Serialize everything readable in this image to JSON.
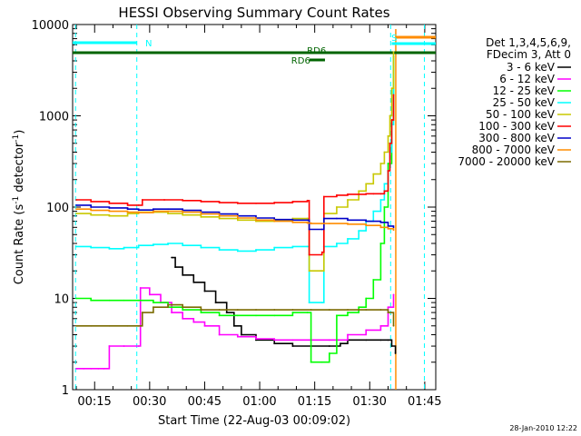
{
  "chart_data": {
    "type": "line",
    "title": "HESSI Observing Summary Count Rates",
    "xlabel": "Start Time (22-Aug-03 00:09:02)",
    "ylabel": "Count Rate (s",
    "ylabel_sup1": "-1",
    "ylabel_mid": " detector",
    "ylabel_sup2": "-1",
    "ylabel_end": ")",
    "yscale": "log",
    "ylim": [
      1,
      10000
    ],
    "xlim": [
      "00:09:02",
      "01:48:00"
    ],
    "xtick_labels": [
      "00:15",
      "00:30",
      "00:45",
      "01:00",
      "01:15",
      "01:30",
      "01:45"
    ],
    "ytick_labels": [
      "1",
      "10",
      "100",
      "1000",
      "10000"
    ],
    "legend": {
      "placement": "top-right",
      "header": [
        "Det 1,3,4,5,6,9,",
        "FDecim 3, Att 0"
      ],
      "entries": [
        {
          "label": "3 - 6 keV",
          "color": "#000000"
        },
        {
          "label": "6 - 12 keV",
          "color": "#ff00ff"
        },
        {
          "label": "12 - 25 keV",
          "color": "#00ff00"
        },
        {
          "label": "25 - 50 keV",
          "color": "#00ffff"
        },
        {
          "label": "50 - 100 keV",
          "color": "#c8c800"
        },
        {
          "label": "100 - 300 keV",
          "color": "#ff0000"
        },
        {
          "label": "300 - 800 keV",
          "color": "#0000c8"
        },
        {
          "label": "800 - 7000 keV",
          "color": "#ff8c00"
        },
        {
          "label": "7000 - 20000 keV",
          "color": "#7a6a00"
        }
      ]
    },
    "flags": [
      {
        "label": "N",
        "color": "#00ffff"
      },
      {
        "label": "S",
        "color": "#00ffff"
      },
      {
        "label": "RD6",
        "color": "#006400"
      },
      {
        "label": "RD6",
        "color": "#006400"
      }
    ],
    "series": [
      {
        "name": "3 - 6 keV",
        "color": "#000000",
        "x": [
          27,
          28,
          30,
          33,
          36,
          39,
          42,
          44,
          46,
          50,
          55,
          60,
          65,
          70,
          73,
          75,
          80,
          84,
          86,
          87,
          88
        ],
        "y": [
          28,
          22,
          18,
          15,
          12,
          9,
          7,
          5,
          4,
          3.5,
          3.2,
          3.0,
          3.0,
          3.0,
          3.2,
          3.5,
          3.5,
          3.5,
          3.5,
          3.0,
          2.5
        ]
      },
      {
        "name": "6 - 12 keV",
        "color": "#ff00ff",
        "x": [
          1,
          3,
          5,
          7,
          8.5,
          10,
          14,
          18,
          18.5,
          21,
          24,
          27,
          30,
          33,
          36,
          40,
          45,
          50,
          55,
          60,
          65,
          70,
          75,
          80,
          84,
          86,
          87.5
        ],
        "y": [
          1.7,
          1.7,
          1.7,
          1.7,
          1.7,
          3,
          3,
          3,
          13,
          11,
          9,
          7,
          6,
          5.5,
          5,
          4,
          3.8,
          3.6,
          3.5,
          3.5,
          3.5,
          3.5,
          4,
          4.5,
          5,
          8,
          11
        ]
      },
      {
        "name": "12 - 25 keV",
        "color": "#00ff00",
        "x": [
          1,
          5,
          10,
          14,
          18,
          22,
          26,
          30,
          35,
          40,
          45,
          50,
          55,
          60,
          64,
          65,
          68,
          70,
          72,
          75,
          78,
          80,
          82,
          84,
          85,
          86,
          87,
          87.5
        ],
        "y": [
          10,
          9.5,
          9.5,
          9.5,
          9.5,
          9,
          8,
          7.5,
          7,
          6.5,
          6.5,
          6.5,
          6.5,
          7,
          7,
          2,
          2,
          2.5,
          6.5,
          7,
          8,
          10,
          16,
          40,
          100,
          300,
          900,
          4500
        ]
      },
      {
        "name": "25 - 50 keV",
        "color": "#00ffff",
        "x": [
          1,
          5,
          10,
          14,
          18,
          22,
          26,
          30,
          35,
          40,
          45,
          50,
          55,
          60,
          64,
          64.5,
          68,
          68.5,
          72,
          75,
          78,
          80,
          82,
          84,
          85,
          86,
          86.5,
          87,
          87.5
        ],
        "y": [
          37,
          36,
          35,
          36,
          38,
          39,
          40,
          38,
          36,
          34,
          33,
          34,
          36,
          37,
          37,
          9,
          9,
          37,
          40,
          45,
          55,
          70,
          90,
          120,
          180,
          250,
          400,
          800,
          4500
        ]
      },
      {
        "name": "50 - 100 keV",
        "color": "#c8c800",
        "x": [
          1,
          5,
          10,
          15,
          18,
          22,
          26,
          30,
          35,
          40,
          45,
          50,
          55,
          60,
          64,
          64.5,
          68,
          68.5,
          72,
          75,
          78,
          80,
          82,
          84,
          85,
          86,
          86.5,
          87,
          87.5
        ],
        "y": [
          85,
          82,
          80,
          85,
          88,
          88,
          85,
          82,
          78,
          75,
          72,
          70,
          72,
          75,
          75,
          20,
          20,
          85,
          100,
          120,
          150,
          180,
          230,
          300,
          400,
          600,
          1000,
          2000,
          5000
        ]
      },
      {
        "name": "100 - 300 keV",
        "color": "#ff0000",
        "x": [
          1,
          5,
          10,
          15,
          18,
          19,
          25,
          30,
          35,
          40,
          45,
          50,
          55,
          60,
          64,
          64.5,
          68,
          68.5,
          72,
          75,
          80,
          82,
          84,
          85,
          86,
          86.5,
          87,
          87.5
        ],
        "y": [
          120,
          115,
          110,
          105,
          105,
          120,
          120,
          118,
          115,
          112,
          110,
          110,
          112,
          115,
          118,
          30,
          32,
          130,
          135,
          138,
          140,
          140,
          140,
          150,
          250,
          500,
          900,
          1700
        ]
      },
      {
        "name": "300 - 800 keV",
        "color": "#0000c8",
        "x": [
          1,
          5,
          10,
          15,
          18,
          22,
          26,
          30,
          35,
          40,
          45,
          50,
          55,
          60,
          64,
          64.5,
          68,
          68.5,
          72,
          75,
          80,
          84,
          86,
          87.5
        ],
        "y": [
          105,
          100,
          98,
          95,
          93,
          95,
          95,
          92,
          88,
          84,
          80,
          76,
          73,
          72,
          72,
          57,
          57,
          75,
          75,
          72,
          70,
          68,
          62,
          60
        ]
      },
      {
        "name": "800 - 7000 keV",
        "color": "#ff8c00",
        "x": [
          1,
          5,
          10,
          15,
          18,
          22,
          26,
          30,
          35,
          40,
          45,
          50,
          55,
          60,
          64,
          65,
          68,
          70,
          75,
          80,
          84,
          86,
          87.5
        ],
        "y": [
          95,
          92,
          90,
          88,
          87,
          90,
          90,
          88,
          84,
          80,
          76,
          72,
          70,
          68,
          67,
          66,
          66,
          66,
          65,
          63,
          60,
          58,
          56
        ]
      },
      {
        "name": "7000 - 20000 keV",
        "color": "#7a6a00",
        "x": [
          1,
          5,
          10,
          15,
          18,
          19,
          22,
          26,
          30,
          35,
          40,
          45,
          50,
          55,
          60,
          65,
          70,
          75,
          80,
          84,
          86,
          87.5
        ],
        "y": [
          5,
          5,
          5,
          5,
          5,
          7,
          8,
          8.5,
          8,
          7.5,
          7.5,
          7.5,
          7.5,
          7.5,
          7.5,
          7.5,
          7.5,
          7.5,
          7.5,
          7.5,
          7,
          5
        ]
      }
    ]
  },
  "footer": {
    "date_stamp": "28-Jan-2010 12:22"
  }
}
